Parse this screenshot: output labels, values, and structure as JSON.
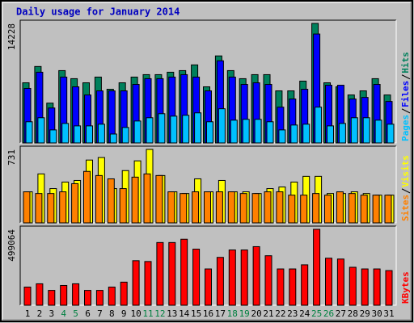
{
  "title": "Daily usage for January 2014",
  "chart_data": [
    {
      "type": "bar",
      "ylim": [
        0,
        14228
      ],
      "yticks": [
        14228
      ],
      "series": [
        {
          "name": "Hits",
          "color": "#00805c",
          "values": [
            7160,
            9100,
            4740,
            8610,
            7650,
            7160,
            7840,
            6390,
            7160,
            7840,
            8130,
            8130,
            8420,
            8610,
            9290,
            6680,
            10360,
            8610,
            7650,
            8130,
            8130,
            6200,
            6200,
            7360,
            14228,
            7160,
            6680,
            5710,
            6200,
            7650,
            5710
          ]
        },
        {
          "name": "Files",
          "color": "#0000ff",
          "values": [
            6490,
            8420,
            4160,
            7840,
            6680,
            5710,
            6200,
            6200,
            6200,
            6970,
            7650,
            7650,
            7840,
            8130,
            7840,
            6200,
            9780,
            7840,
            6970,
            7160,
            6970,
            4260,
            5230,
            6390,
            12970,
            6870,
            6870,
            5230,
            5420,
            6970,
            4940
          ]
        },
        {
          "name": "Pages",
          "color": "#00c0ff",
          "values": [
            2520,
            3000,
            1550,
            2320,
            2030,
            2030,
            2230,
            1060,
            1840,
            2610,
            3000,
            3480,
            3190,
            3290,
            3580,
            2520,
            4070,
            2710,
            2810,
            2810,
            2520,
            1550,
            2130,
            2230,
            4260,
            2030,
            2320,
            3000,
            3000,
            2710,
            2230
          ]
        }
      ]
    },
    {
      "type": "bar",
      "ylim": [
        0,
        731
      ],
      "yticks": [
        731
      ],
      "series": [
        {
          "name": "Visits",
          "color": "#ffff00",
          "values": [
            309,
            487,
            341,
            406,
            422,
            625,
            650,
            341,
            520,
            617,
            731,
            471,
            309,
            292,
            438,
            309,
            422,
            309,
            309,
            292,
            341,
            357,
            406,
            463,
            463,
            292,
            292,
            309,
            292,
            276,
            276
          ]
        },
        {
          "name": "Sites",
          "color": "#ff8000",
          "values": [
            309,
            292,
            292,
            309,
            390,
            512,
            471,
            438,
            341,
            455,
            487,
            471,
            309,
            292,
            309,
            309,
            309,
            309,
            292,
            292,
            309,
            309,
            276,
            276,
            292,
            276,
            309,
            292,
            276,
            276,
            276
          ]
        }
      ]
    },
    {
      "type": "bar",
      "ylim": [
        0,
        499064
      ],
      "yticks": [
        499064
      ],
      "categories": [
        "1",
        "2",
        "3",
        "4",
        "5",
        "6",
        "7",
        "8",
        "9",
        "10",
        "11",
        "12",
        "13",
        "14",
        "15",
        "16",
        "17",
        "18",
        "19",
        "20",
        "21",
        "22",
        "23",
        "24",
        "25",
        "26",
        "27",
        "28",
        "29",
        "30",
        "31"
      ],
      "label_colors": [
        "#000000",
        "#000000",
        "#000000",
        "#008040",
        "#008040",
        "#000000",
        "#000000",
        "#000000",
        "#000000",
        "#000000",
        "#008040",
        "#008040",
        "#000000",
        "#000000",
        "#000000",
        "#000000",
        "#000000",
        "#008040",
        "#008040",
        "#000000",
        "#000000",
        "#000000",
        "#000000",
        "#000000",
        "#008040",
        "#008040",
        "#000000",
        "#000000",
        "#000000",
        "#000000",
        "#000000"
      ],
      "series": [
        {
          "name": "KBytes",
          "color": "#ff0000",
          "values": [
            119350,
            141050,
            97650,
            130200,
            141050,
            97650,
            97650,
            119350,
            151900,
            292950,
            287530,
            412300,
            412300,
            434000,
            368900,
            238700,
            314650,
            363480,
            363480,
            385180,
            325500,
            238700,
            238700,
            265830,
            499064,
            309230,
            303800,
            249550,
            238700,
            238700,
            227850
          ]
        }
      ]
    }
  ]
}
